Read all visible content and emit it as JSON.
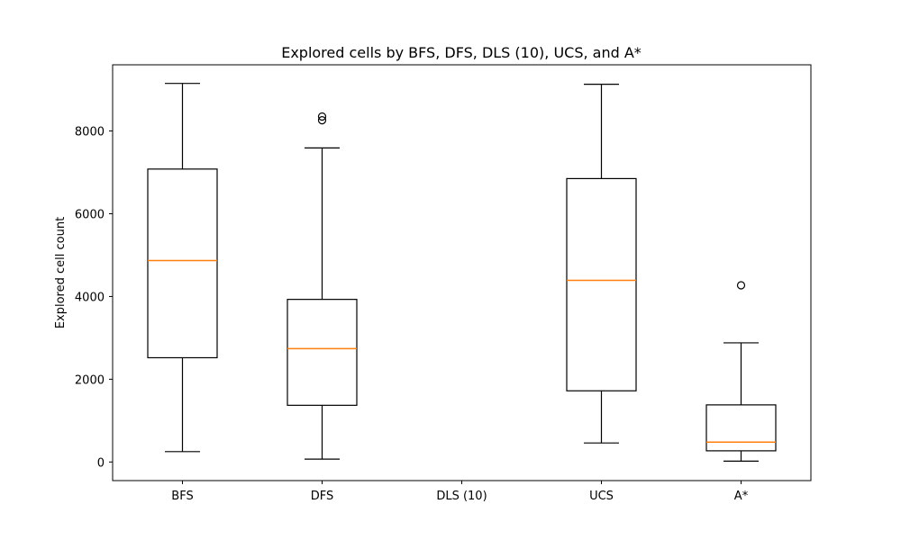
{
  "chart_data": {
    "type": "box",
    "title": "Explored cells by BFS, DFS, DLS (10), UCS, and A*",
    "xlabel": "",
    "ylabel": "Explored cell count",
    "ylim": [
      -450,
      9600
    ],
    "yticks": [
      0,
      2000,
      4000,
      6000,
      8000
    ],
    "grid": false,
    "colors": {
      "box": "#000000",
      "median": "#ff7f0e",
      "frame": "#000000"
    },
    "categories": [
      "BFS",
      "DFS",
      "DLS (10)",
      "UCS",
      "A*"
    ],
    "boxes": [
      {
        "category": "BFS",
        "whisker_low": 250,
        "q1": 2520,
        "median": 4870,
        "q3": 7080,
        "whisker_high": 9150,
        "outliers": []
      },
      {
        "category": "DFS",
        "whisker_low": 70,
        "q1": 1370,
        "median": 2740,
        "q3": 3930,
        "whisker_high": 7590,
        "outliers": [
          8260,
          8350
        ]
      },
      {
        "category": "DLS (10)",
        "whisker_low": null,
        "q1": null,
        "median": null,
        "q3": null,
        "whisker_high": null,
        "outliers": []
      },
      {
        "category": "UCS",
        "whisker_low": 460,
        "q1": 1720,
        "median": 4390,
        "q3": 6850,
        "whisker_high": 9130,
        "outliers": []
      },
      {
        "category": "A*",
        "whisker_low": 20,
        "q1": 270,
        "median": 480,
        "q3": 1380,
        "whisker_high": 2880,
        "outliers": [
          4270
        ]
      }
    ]
  }
}
